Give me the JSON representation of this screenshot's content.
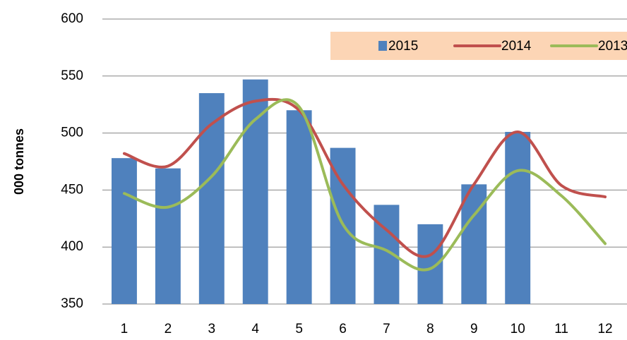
{
  "chart_data": {
    "type": "bar-line",
    "y_label": "000 tonnes",
    "categories": [
      "1",
      "2",
      "3",
      "4",
      "5",
      "6",
      "7",
      "8",
      "9",
      "10",
      "11",
      "12"
    ],
    "series": [
      {
        "name": "2015",
        "type": "bar",
        "color": "#4f81bd",
        "values": [
          478,
          469,
          535,
          547,
          520,
          487,
          437,
          420,
          455,
          501,
          null,
          null
        ]
      },
      {
        "name": "2014",
        "type": "line",
        "color": "#c0504d",
        "values": [
          482,
          471,
          508,
          528,
          520,
          455,
          415,
          393,
          455,
          501,
          454,
          444
        ]
      },
      {
        "name": "2013",
        "type": "line",
        "color": "#9bbb59",
        "values": [
          447,
          435,
          462,
          512,
          523,
          420,
          397,
          381,
          428,
          467,
          445,
          403
        ]
      }
    ],
    "ylim": [
      350,
      600
    ],
    "yticks": [
      350,
      400,
      450,
      500,
      550,
      600
    ],
    "grid": true,
    "legend_position": "top-right",
    "legend_background": "#fcd5b5"
  }
}
